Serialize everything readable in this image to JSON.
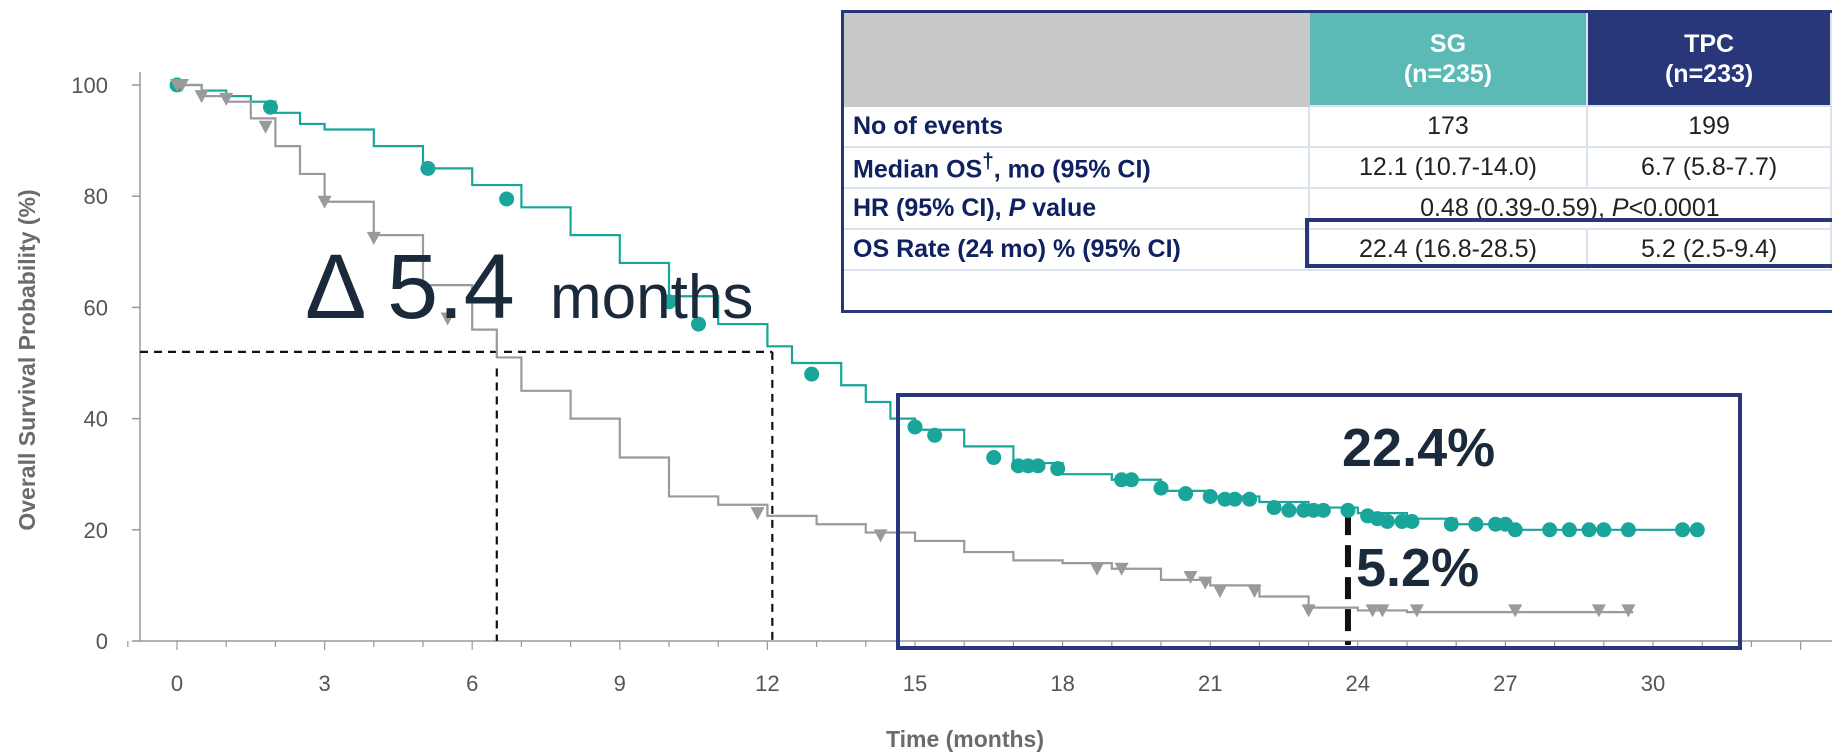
{
  "chart_data": {
    "type": "line",
    "subtype": "kaplan-meier",
    "xlabel": "Time (months)",
    "ylabel": "Overall Survival Probability (%)",
    "xlim": [
      -1,
      33
    ],
    "ylim": [
      0,
      100
    ],
    "x_ticks": [
      "0",
      "3",
      "6",
      "9",
      "12",
      "15",
      "18",
      "21",
      "24",
      "27",
      "30"
    ],
    "y_ticks": [
      "0",
      "20",
      "40",
      "60",
      "80",
      "100"
    ],
    "series": [
      {
        "color": "#1aa59a",
        "marker": "circle",
        "x": [
          0,
          0.5,
          1,
          1.5,
          2,
          2.5,
          3,
          4,
          5,
          6,
          7,
          8,
          9,
          10,
          11,
          12,
          12.5,
          13.5,
          14,
          14.5,
          15,
          16,
          17,
          18,
          19,
          20,
          21,
          22,
          23,
          24,
          25,
          26,
          27,
          28,
          29,
          30,
          31
        ],
        "y": [
          100,
          99,
          98,
          97,
          95,
          93,
          92,
          89,
          85,
          82,
          78,
          73,
          68,
          62,
          57,
          53,
          50,
          46,
          43,
          40,
          38,
          35,
          32,
          30,
          29,
          27,
          26,
          25,
          24,
          23,
          22,
          21,
          20,
          20,
          20,
          20,
          20
        ],
        "censor_x": [
          0,
          1.9,
          5.1,
          6.7,
          10.0,
          10.6,
          12.9,
          15.0,
          15.4,
          16.6,
          17.1,
          17.3,
          17.5,
          17.9,
          19.2,
          19.4,
          20.0,
          20.5,
          21.0,
          21.3,
          21.5,
          21.8,
          22.3,
          22.6,
          22.9,
          23.1,
          23.3,
          23.8,
          24.2,
          24.4,
          24.6,
          24.9,
          25.1,
          25.9,
          26.4,
          26.8,
          27.0,
          27.2,
          27.9,
          28.3,
          28.7,
          29.0,
          29.5,
          30.6,
          30.9
        ],
        "censor_y": [
          100,
          96,
          85,
          79.5,
          61,
          57,
          48,
          38.5,
          37,
          33,
          31.5,
          31.5,
          31.5,
          31,
          29,
          29,
          27.5,
          26.5,
          26,
          25.5,
          25.5,
          25.5,
          24,
          23.5,
          23.5,
          23.5,
          23.5,
          23.5,
          22.5,
          22,
          21.5,
          21.5,
          21.5,
          21,
          21,
          21,
          21,
          20,
          20,
          20,
          20,
          20,
          20,
          20,
          20
        ]
      },
      {
        "color": "#9a9a9a",
        "marker": "triangle",
        "x": [
          0,
          0.5,
          1,
          1.5,
          2,
          2.5,
          3,
          4,
          5,
          6,
          6.5,
          7,
          8,
          9,
          10,
          11,
          12,
          13,
          14,
          15,
          16,
          17,
          18,
          19,
          20,
          21,
          22,
          23,
          24,
          25,
          26,
          27,
          28,
          29,
          29.6
        ],
        "y": [
          100,
          98,
          97,
          94,
          89,
          84,
          79,
          73,
          64,
          56,
          51,
          45,
          40,
          33,
          26,
          24.5,
          22.5,
          21,
          19.5,
          18,
          16,
          14.5,
          14,
          13,
          11,
          10,
          8,
          6,
          5.5,
          5.2,
          5.2,
          5.2,
          5.2,
          5.2,
          5.2
        ],
        "censor_x": [
          0,
          0.1,
          0.5,
          1.0,
          1.8,
          3.0,
          4.0,
          5.5,
          11.8,
          14.3,
          18.7,
          19.2,
          20.6,
          20.9,
          21.2,
          21.9,
          23.0,
          24.3,
          24.5,
          25.2,
          27.2,
          28.9,
          29.5
        ],
        "censor_y": [
          100,
          100,
          98,
          97.5,
          92.5,
          79,
          72.5,
          58,
          23,
          19,
          13,
          13,
          11.5,
          10.5,
          9,
          9,
          5.5,
          5.5,
          5.5,
          5.5,
          5.5,
          5.5,
          5.5
        ]
      }
    ],
    "annotations": {
      "delta": "Δ 5.4",
      "delta_unit": "months",
      "sg_rate": "22.4%",
      "tpc_rate": "5.2%",
      "median_sg_x": 12.1,
      "median_tpc_x": 6.5,
      "median_y": 50,
      "rate_time_x": 23.8
    }
  },
  "table": {
    "headers": [
      "",
      "SG\n(n=235)",
      "TPC\n(n=233)"
    ],
    "sg_header_line1": "SG",
    "sg_header_line2": "(n=235)",
    "tpc_header_line1": "TPC",
    "tpc_header_line2": "(n=233)",
    "rows": {
      "events": {
        "label": "No of events",
        "sg": "173",
        "tpc": "199"
      },
      "median": {
        "label_pre": "Median OS",
        "label_sup": "†",
        "label_post": ", mo (95% CI)",
        "sg": "12.1 (10.7-14.0)",
        "tpc": "6.7 (5.8-7.7)"
      },
      "hr": {
        "label_pre": "HR (95% CI), ",
        "label_p": "P",
        "label_post": " value",
        "value_pre": "0.48 (0.39-0.59), ",
        "value_p": "P",
        "value_post": "<0.0001"
      },
      "rate": {
        "label": "OS Rate (24 mo) % (95% CI)",
        "sg": "22.4 (16.8-28.5)",
        "tpc": "5.2 (2.5-9.4)"
      }
    }
  },
  "colors": {
    "sg": "#1aa59a",
    "tpc": "#9a9a9a",
    "navy": "#28367a",
    "sg_header": "#5bbab6",
    "blank_header": "#c9c9c9"
  }
}
